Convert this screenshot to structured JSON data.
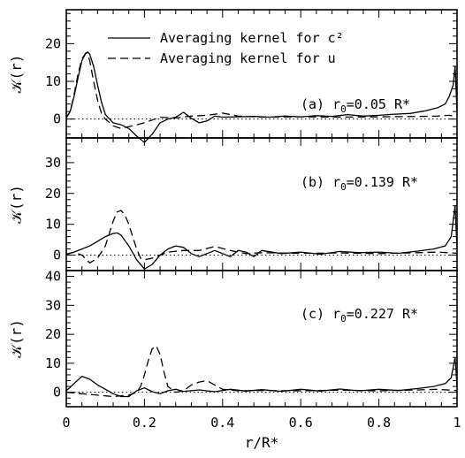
{
  "chart_data": {
    "type": "line",
    "xlabel": "r/R*",
    "ylabel": "𝒦(r)",
    "xlim": [
      0,
      1
    ],
    "xticks": [
      "0",
      "0.2",
      "0.4",
      "0.6",
      "0.8",
      "1"
    ],
    "legend": {
      "placement": "top-center of top panel",
      "entries": [
        {
          "label": "Averaging kernel for c²",
          "style": "solid"
        },
        {
          "label": "Averaging kernel for u",
          "style": "dashed"
        }
      ]
    },
    "panels": [
      {
        "label": "(a)",
        "annotation_prefix": "(a) r",
        "annotation_sub": "0",
        "annotation_value": "=0.05 R*",
        "ylim": [
          -5,
          29
        ],
        "yticks": [
          0,
          10,
          20
        ],
        "series": [
          {
            "name": "Averaging kernel for c²",
            "style": "solid",
            "x": [
              0,
              0.01,
              0.02,
              0.03,
              0.04,
              0.05,
              0.055,
              0.06,
              0.07,
              0.08,
              0.09,
              0.1,
              0.12,
              0.14,
              0.16,
              0.18,
              0.2,
              0.22,
              0.24,
              0.26,
              0.28,
              0.3,
              0.32,
              0.34,
              0.36,
              0.38,
              0.4,
              0.44,
              0.48,
              0.52,
              0.56,
              0.6,
              0.64,
              0.68,
              0.72,
              0.76,
              0.8,
              0.84,
              0.88,
              0.92,
              0.95,
              0.97,
              0.98,
              0.99,
              0.995,
              1.0
            ],
            "y": [
              0.5,
              2,
              6,
              11,
              15.5,
              17.5,
              17.8,
              17.2,
              14,
              9,
              4.5,
              1.2,
              -1,
              -1.5,
              -2.5,
              -4.5,
              -6.2,
              -4,
              -1,
              0,
              0.5,
              1.8,
              0.2,
              -1,
              -0.5,
              0.8,
              0.5,
              0.6,
              0.7,
              0.5,
              0.8,
              0.6,
              0.9,
              0.7,
              1.2,
              0.8,
              1.0,
              1.3,
              1.5,
              2.2,
              3,
              4,
              6,
              9,
              14,
              2
            ]
          },
          {
            "name": "Averaging kernel for u",
            "style": "dashed",
            "x": [
              0,
              0.01,
              0.02,
              0.03,
              0.04,
              0.05,
              0.055,
              0.06,
              0.07,
              0.08,
              0.09,
              0.1,
              0.12,
              0.14,
              0.16,
              0.18,
              0.2,
              0.24,
              0.28,
              0.32,
              0.36,
              0.4,
              0.44,
              0.5,
              0.6,
              0.7,
              0.8,
              0.9,
              0.95,
              0.98,
              1.0
            ],
            "y": [
              0.3,
              2,
              6.5,
              12,
              16,
              17.5,
              17.2,
              15.5,
              10,
              5,
              1.5,
              0,
              -1.8,
              -2.5,
              -2,
              -1.5,
              -1,
              0.5,
              0.3,
              0.8,
              1.0,
              1.6,
              0.8,
              0.5,
              0.6,
              0.5,
              0.6,
              0.7,
              0.8,
              1.0,
              0.6
            ]
          }
        ]
      },
      {
        "label": "(b)",
        "annotation_prefix": "(b) r",
        "annotation_sub": "0",
        "annotation_value": "=0.139 R*",
        "ylim": [
          -5,
          38
        ],
        "yticks": [
          0,
          10,
          20,
          30
        ],
        "series": [
          {
            "name": "Averaging kernel for c²",
            "style": "solid",
            "x": [
              0,
              0.02,
              0.04,
              0.06,
              0.08,
              0.1,
              0.12,
              0.13,
              0.14,
              0.16,
              0.18,
              0.2,
              0.22,
              0.24,
              0.26,
              0.28,
              0.3,
              0.32,
              0.34,
              0.36,
              0.38,
              0.4,
              0.42,
              0.44,
              0.46,
              0.48,
              0.5,
              0.55,
              0.6,
              0.65,
              0.7,
              0.75,
              0.8,
              0.85,
              0.9,
              0.94,
              0.97,
              0.985,
              0.995,
              1.0
            ],
            "y": [
              0.2,
              1,
              2,
              3,
              4.5,
              6,
              7,
              7.2,
              6.5,
              3,
              -1.5,
              -4.5,
              -3,
              0,
              2,
              3,
              2.5,
              0.5,
              -0.5,
              0.5,
              1.5,
              0.5,
              -0.5,
              1.5,
              1.0,
              -0.5,
              1.5,
              0.5,
              1.0,
              0.3,
              1.2,
              0.8,
              1.0,
              0.6,
              1.3,
              2,
              3,
              6,
              16,
              2
            ]
          },
          {
            "name": "Averaging kernel for u",
            "style": "dashed",
            "x": [
              0,
              0.02,
              0.04,
              0.06,
              0.08,
              0.1,
              0.11,
              0.12,
              0.13,
              0.14,
              0.15,
              0.16,
              0.17,
              0.18,
              0.19,
              0.2,
              0.22,
              0.26,
              0.3,
              0.34,
              0.38,
              0.42,
              0.46,
              0.5,
              0.6,
              0.7,
              0.8,
              0.9,
              0.95,
              1.0
            ],
            "y": [
              0.3,
              1,
              0,
              -2.5,
              -1,
              3,
              7,
              11,
              14,
              14.5,
              13,
              10,
              6,
              2,
              -1,
              -1.5,
              -1,
              1,
              1.5,
              1.5,
              2.8,
              1.5,
              0.5,
              0.8,
              0.6,
              0.7,
              0.5,
              0.8,
              1.0,
              0.6
            ]
          }
        ]
      },
      {
        "label": "(c)",
        "annotation_prefix": "(c) r",
        "annotation_sub": "0",
        "annotation_value": "=0.227 R*",
        "ylim": [
          -5,
          42
        ],
        "yticks": [
          0,
          10,
          20,
          30,
          40
        ],
        "series": [
          {
            "name": "Averaging kernel for c²",
            "style": "solid",
            "x": [
              0,
              0.02,
              0.04,
              0.06,
              0.08,
              0.1,
              0.12,
              0.14,
              0.16,
              0.18,
              0.2,
              0.22,
              0.24,
              0.26,
              0.28,
              0.3,
              0.34,
              0.38,
              0.42,
              0.46,
              0.5,
              0.55,
              0.6,
              0.65,
              0.7,
              0.75,
              0.8,
              0.85,
              0.9,
              0.94,
              0.97,
              0.985,
              0.995,
              1.0
            ],
            "y": [
              0.5,
              3,
              5.5,
              4.5,
              2.5,
              1,
              -0.5,
              -1.5,
              -1.5,
              0.5,
              1.5,
              0.2,
              -0.5,
              0.5,
              1.0,
              0.3,
              0.8,
              0.2,
              1.0,
              0.4,
              0.9,
              0.3,
              1.0,
              0.4,
              1.1,
              0.5,
              1.0,
              0.6,
              1.3,
              2,
              3,
              5,
              12,
              2
            ]
          },
          {
            "name": "Averaging kernel for u",
            "style": "dashed",
            "x": [
              0,
              0.04,
              0.08,
              0.12,
              0.16,
              0.18,
              0.19,
              0.2,
              0.21,
              0.22,
              0.23,
              0.24,
              0.25,
              0.26,
              0.28,
              0.3,
              0.32,
              0.34,
              0.36,
              0.38,
              0.4,
              0.44,
              0.5,
              0.6,
              0.7,
              0.8,
              0.9,
              0.95,
              1.0
            ],
            "y": [
              0,
              -0.5,
              -1,
              -1.5,
              -1,
              0,
              2,
              6,
              11,
              15,
              16,
              13,
              7,
              2,
              0,
              0.5,
              2.5,
              3.5,
              4,
              2.5,
              1,
              0.5,
              0.6,
              0.5,
              0.7,
              0.5,
              0.8,
              1.0,
              0.6
            ]
          }
        ]
      }
    ]
  }
}
